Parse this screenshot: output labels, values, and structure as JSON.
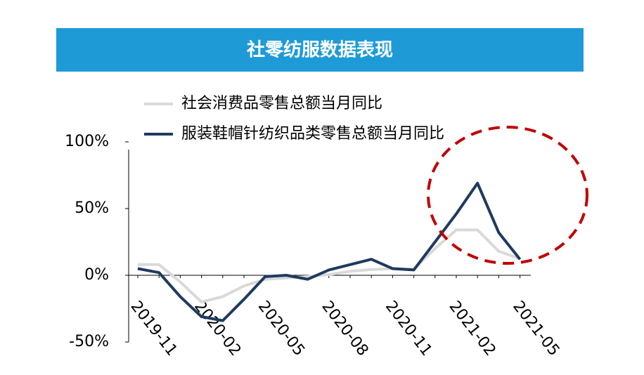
{
  "chart_data": {
    "type": "line",
    "title": "社零纺服数据表现",
    "categories": [
      "2019-11",
      null,
      null,
      "2020-02",
      null,
      null,
      "2020-05",
      null,
      null,
      "2020-08",
      null,
      null,
      "2020-11",
      null,
      null,
      "2021-02",
      null,
      null,
      "2021-05"
    ],
    "series": [
      {
        "name": "社会消费品零售总额当月同比",
        "color": "#d9d9d9",
        "values": [
          8,
          8,
          -5,
          -20,
          -16,
          -8,
          -3,
          -2,
          -1,
          0.5,
          3,
          4.3,
          5,
          4.6,
          20,
          34,
          34,
          18,
          12.4
        ]
      },
      {
        "name": "服装鞋帽针纺织品类零售总额当月同比",
        "color": "#1f3a5f",
        "values": [
          5,
          2,
          -16,
          -31,
          -34,
          -18,
          -1,
          0,
          -3,
          4,
          8,
          12,
          5,
          4,
          25,
          46,
          69,
          32,
          12
        ]
      }
    ],
    "ylim": [
      -50,
      100
    ],
    "yticks": [
      {
        "value": -50,
        "label": "-50%"
      },
      {
        "value": 0,
        "label": "0%"
      },
      {
        "value": 50,
        "label": "50%"
      },
      {
        "value": 100,
        "label": "100%"
      }
    ]
  }
}
